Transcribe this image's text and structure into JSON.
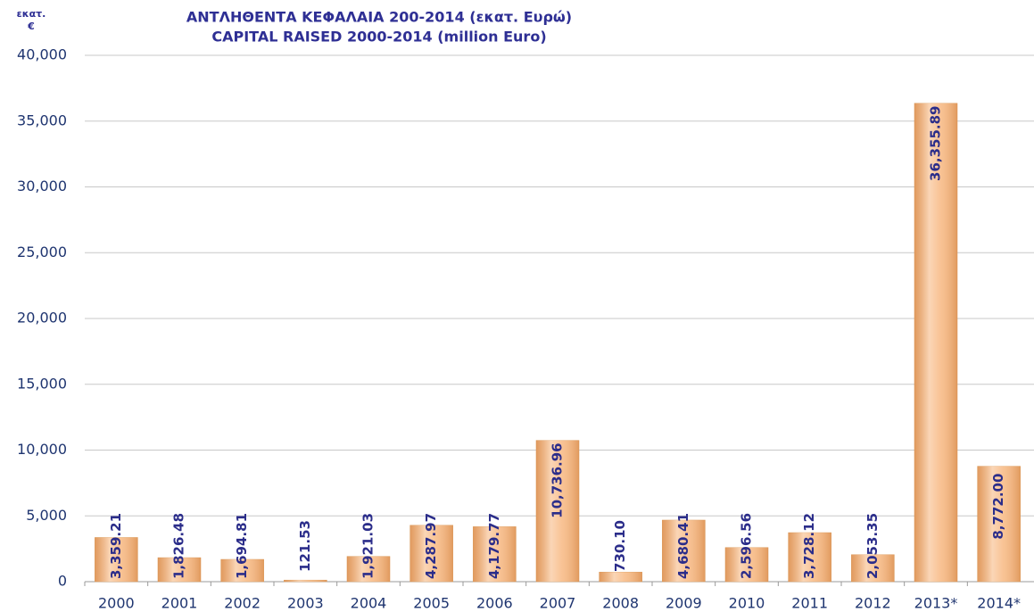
{
  "chart_data": {
    "type": "bar",
    "title": [
      "ΑΝΤΛΗΘΕΝΤΑ ΚΕΦΑΛΑΙΑ 200-2014 (εκατ. Ευρώ)",
      "CAPITAL RAISED 2000-2014 (million Euro)"
    ],
    "y_label": [
      "εκατ.",
      "€"
    ],
    "categories": [
      "2000",
      "2001",
      "2002",
      "2003",
      "2004",
      "2005",
      "2006",
      "2007",
      "2008",
      "2009",
      "2010",
      "2011",
      "2012",
      "2013*",
      "2014*"
    ],
    "values": [
      3359.21,
      1826.48,
      1694.81,
      121.53,
      1921.03,
      4287.97,
      4179.77,
      10736.96,
      730.1,
      4680.41,
      2596.56,
      3728.12,
      2053.35,
      36355.89,
      8772.0
    ],
    "value_labels": [
      "3,359.21",
      "1,826.48",
      "1,694.81",
      "121.53",
      "1,921.03",
      "4,287.97",
      "4,179.77",
      "10,736.96",
      "730.10",
      "4,680.41",
      "2,596.56",
      "3,728.12",
      "2,053.35",
      "36,355.89",
      "8,772.00"
    ],
    "color": "#f7b47a",
    "ylim": [
      0,
      40000
    ],
    "yticks": [
      0,
      {
        "value": 5000,
        "label": "5,000"
      },
      {
        "value": 10000,
        "label": "10,000"
      },
      {
        "value": 15000,
        "label": "15,000"
      },
      {
        "value": 20000,
        "label": "20,000"
      },
      {
        "value": 25000,
        "label": "25,000"
      },
      {
        "value": 30000,
        "label": "30,000"
      },
      {
        "value": 35000,
        "label": "35,000"
      },
      {
        "value": 40000,
        "label": "40,000"
      }
    ],
    "grid": true
  }
}
